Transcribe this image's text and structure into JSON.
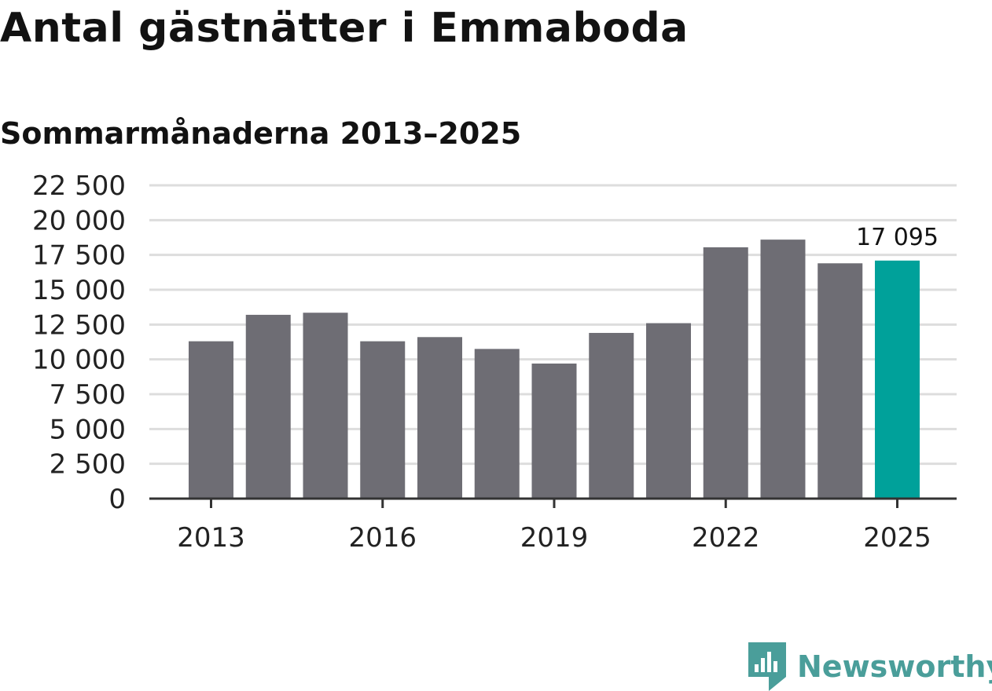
{
  "title": "Antal gästnätter i Emmaboda",
  "subtitle": "Sommarmånaderna 2013–2025",
  "brand": {
    "name": "Newsworthy",
    "icon": "newsworthy-logo-icon",
    "color": "#4a9e9a"
  },
  "colors": {
    "bar": "#6e6d74",
    "highlight": "#00a19a",
    "grid": "#dddddd",
    "axis": "#333333",
    "text": "#222222"
  },
  "chart_data": {
    "type": "bar",
    "categories": [
      "2013",
      "2014",
      "2015",
      "2016",
      "2017",
      "2018",
      "2019",
      "2020",
      "2021",
      "2022",
      "2023",
      "2024",
      "2025"
    ],
    "values": [
      11300,
      13200,
      13350,
      11300,
      11600,
      10750,
      9700,
      11900,
      12600,
      18050,
      18600,
      16900,
      17095
    ],
    "highlight_index": 12,
    "data_labels": [
      {
        "index": 12,
        "text": "17 095"
      }
    ],
    "y_ticks": [
      0,
      2500,
      5000,
      7500,
      10000,
      12500,
      15000,
      17500,
      20000,
      22500
    ],
    "y_tick_labels": [
      "0",
      "2 500",
      "5 000",
      "7 500",
      "10 000",
      "12 500",
      "15 000",
      "17 500",
      "20 000",
      "22 500"
    ],
    "x_tick_labels": [
      "2013",
      "2016",
      "2019",
      "2022",
      "2025"
    ],
    "ylim": [
      0,
      22500
    ],
    "grid": true,
    "title": "Antal gästnätter i Emmaboda",
    "subtitle": "Sommarmånaderna 2013–2025",
    "xlabel": "",
    "ylabel": ""
  }
}
